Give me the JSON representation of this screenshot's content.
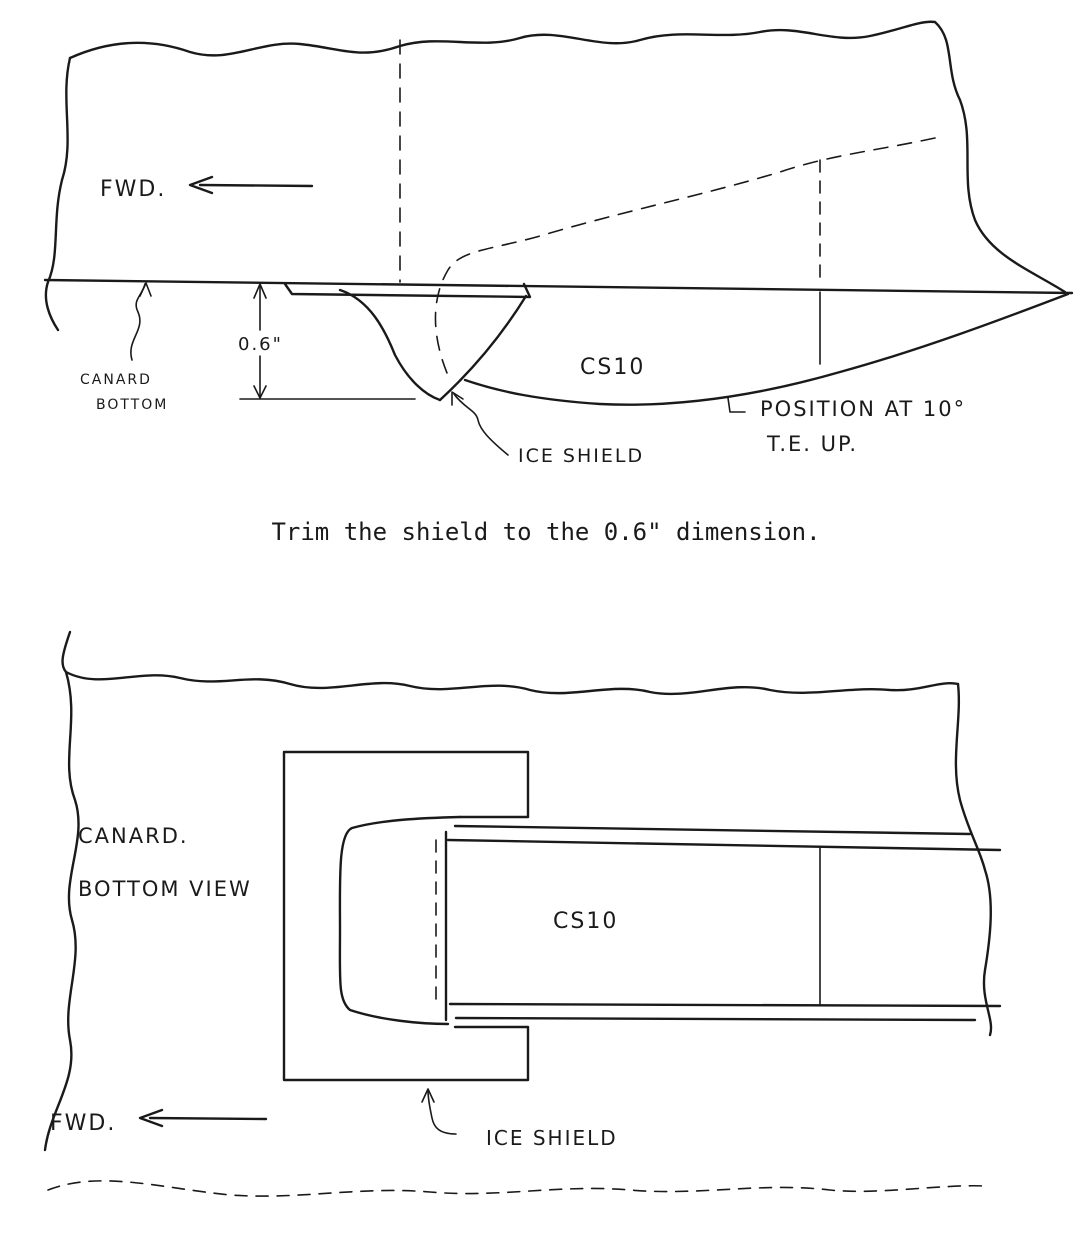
{
  "top_view": {
    "fwd_label": "FWD.",
    "dimension_label": "0.6\"",
    "canard_bottom_label_line1": "CANARD",
    "canard_bottom_label_line2": "BOTTOM",
    "part_label": "CS10",
    "position_label_line1": "POSITION AT 10°",
    "position_label_line2": "T.E. UP.",
    "ice_shield_label": "ICE SHIELD"
  },
  "caption": "Trim the shield to the 0.6\" dimension.",
  "bottom_view": {
    "title_line1": "CANARD.",
    "title_line2": "BOTTOM VIEW",
    "part_label": "CS10",
    "fwd_label": "FWD.",
    "ice_shield_label": "ICE SHIELD"
  },
  "colors": {
    "ink": "#1a1a1a",
    "paper": "#ffffff"
  }
}
